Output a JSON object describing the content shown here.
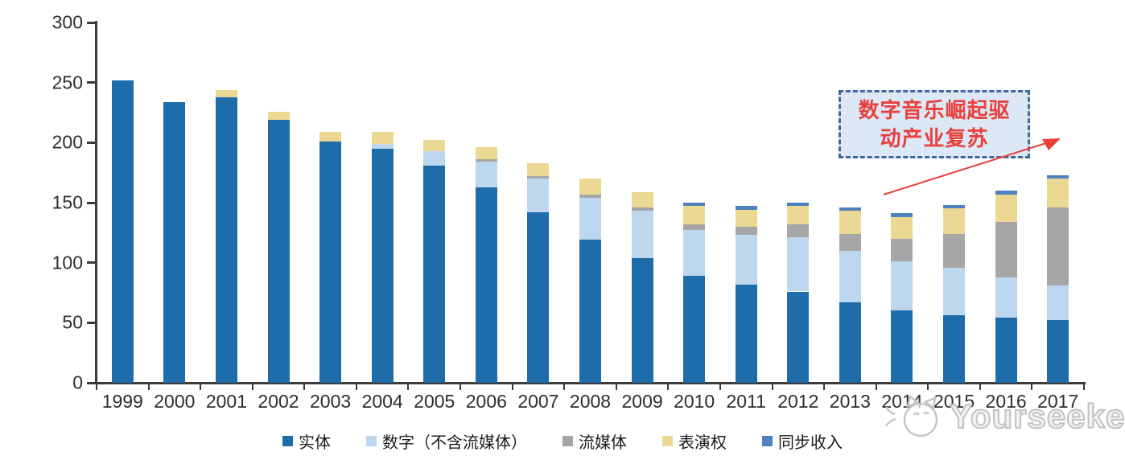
{
  "chart_data": {
    "type": "bar",
    "stacked": true,
    "title": "",
    "xlabel": "",
    "ylabel": "",
    "categories": [
      "1999",
      "2000",
      "2001",
      "2002",
      "2003",
      "2004",
      "2005",
      "2006",
      "2007",
      "2008",
      "2009",
      "2010",
      "2011",
      "2012",
      "2013",
      "2014",
      "2015",
      "2016",
      "2017"
    ],
    "series": [
      {
        "name": "实体",
        "color": "#1F6CAB",
        "values": [
          252,
          234,
          238,
          219,
          201,
          195,
          181,
          163,
          142,
          119,
          104,
          89,
          82,
          76,
          67,
          60,
          56,
          54,
          52
        ]
      },
      {
        "name": "数字（不含流媒体）",
        "color": "#BDD7EE",
        "values": [
          0,
          0,
          0,
          0,
          0,
          4,
          12,
          21,
          28,
          35,
          39,
          38,
          41,
          45,
          43,
          41,
          40,
          34,
          29
        ]
      },
      {
        "name": "流媒体",
        "color": "#A6A6A6",
        "values": [
          0,
          0,
          0,
          0,
          0,
          0,
          0,
          2,
          2,
          3,
          3,
          5,
          7,
          11,
          14,
          19,
          28,
          46,
          65
        ]
      },
      {
        "name": "表演权",
        "color": "#EBD893",
        "values": [
          0,
          0,
          6,
          7,
          8,
          10,
          9,
          10,
          11,
          13,
          13,
          15,
          14,
          15,
          19,
          18,
          21,
          23,
          24
        ]
      },
      {
        "name": "同步收入",
        "color": "#4E81BD",
        "values": [
          0,
          0,
          0,
          0,
          0,
          0,
          0,
          0,
          0,
          0,
          0,
          3,
          3,
          3,
          3,
          3,
          3,
          3,
          3
        ]
      }
    ],
    "totals": [
      252,
      234,
      244,
      226,
      209,
      209,
      202,
      196,
      183,
      170,
      159,
      150,
      147,
      150,
      146,
      141,
      148,
      160,
      173
    ],
    "ylim": [
      0,
      300
    ],
    "ytick_step": 50,
    "yticks": [
      "0",
      "50",
      "100",
      "150",
      "200",
      "250",
      "300"
    ],
    "grid": false,
    "legend_position": "bottom"
  },
  "annotation": {
    "line1": "数字音乐崛起驱",
    "line2": "动产业复苏",
    "text_color": "#E8403C",
    "border_color": "#44679B",
    "fill_color": "#DCE8F6",
    "arrow_color": "#E8413C"
  },
  "watermark": {
    "text": "Yourseeker"
  }
}
